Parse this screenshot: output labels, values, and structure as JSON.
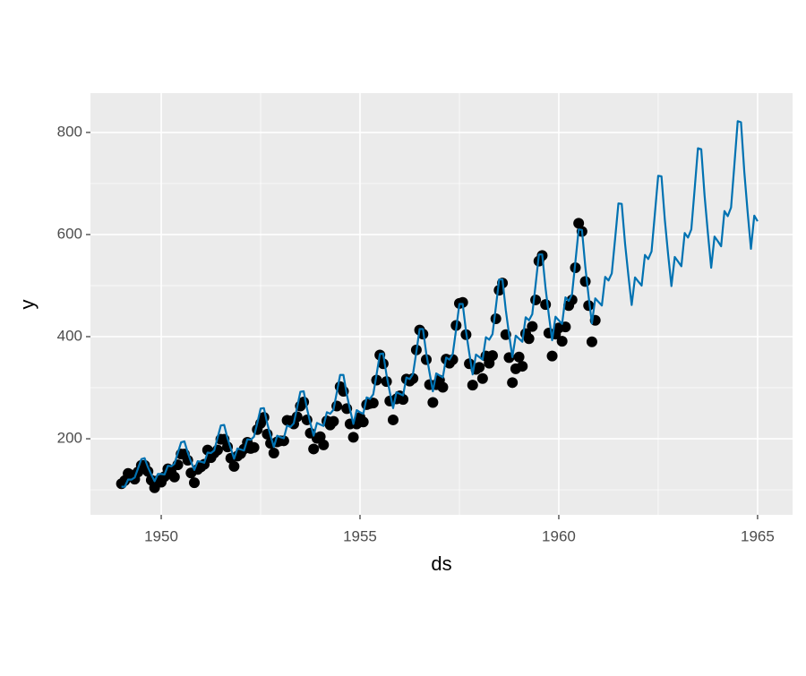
{
  "chart_data": {
    "type": "line",
    "xlabel": "ds",
    "ylabel": "y",
    "xlim": [
      1948.22,
      1965.88
    ],
    "ylim": [
      51,
      877
    ],
    "xticks": [
      1950,
      1955,
      1960,
      1965
    ],
    "yticks": [
      200,
      400,
      600,
      800
    ],
    "grid": true,
    "panel_color": "#ebebeb",
    "x": [
      1949,
      1949.083,
      1949.167,
      1949.25,
      1949.333,
      1949.417,
      1949.5,
      1949.583,
      1949.667,
      1949.75,
      1949.833,
      1949.917,
      1950,
      1950.083,
      1950.167,
      1950.25,
      1950.333,
      1950.417,
      1950.5,
      1950.583,
      1950.667,
      1950.75,
      1950.833,
      1950.917,
      1951,
      1951.083,
      1951.167,
      1951.25,
      1951.333,
      1951.417,
      1951.5,
      1951.583,
      1951.667,
      1951.75,
      1951.833,
      1951.917,
      1952,
      1952.083,
      1952.167,
      1952.25,
      1952.333,
      1952.417,
      1952.5,
      1952.583,
      1952.667,
      1952.75,
      1952.833,
      1952.917,
      1953,
      1953.083,
      1953.167,
      1953.25,
      1953.333,
      1953.417,
      1953.5,
      1953.583,
      1953.667,
      1953.75,
      1953.833,
      1953.917,
      1954,
      1954.083,
      1954.167,
      1954.25,
      1954.333,
      1954.417,
      1954.5,
      1954.583,
      1954.667,
      1954.75,
      1954.833,
      1954.917,
      1955,
      1955.083,
      1955.167,
      1955.25,
      1955.333,
      1955.417,
      1955.5,
      1955.583,
      1955.667,
      1955.75,
      1955.833,
      1955.917,
      1956,
      1956.083,
      1956.167,
      1956.25,
      1956.333,
      1956.417,
      1956.5,
      1956.583,
      1956.667,
      1956.75,
      1956.833,
      1956.917,
      1957,
      1957.083,
      1957.167,
      1957.25,
      1957.333,
      1957.417,
      1957.5,
      1957.583,
      1957.667,
      1957.75,
      1957.833,
      1957.917,
      1958,
      1958.083,
      1958.167,
      1958.25,
      1958.333,
      1958.417,
      1958.5,
      1958.583,
      1958.667,
      1958.75,
      1958.833,
      1958.917,
      1959,
      1959.083,
      1959.167,
      1959.25,
      1959.333,
      1959.417,
      1959.5,
      1959.583,
      1959.667,
      1959.75,
      1959.833,
      1959.917,
      1960,
      1960.083,
      1960.167,
      1960.25,
      1960.333,
      1960.417,
      1960.5,
      1960.583,
      1960.667,
      1960.75,
      1960.833,
      1960.917,
      1961,
      1961.083,
      1961.167,
      1961.25,
      1961.333,
      1961.417,
      1961.5,
      1961.583,
      1961.667,
      1961.75,
      1961.833,
      1961.917,
      1962,
      1962.083,
      1962.167,
      1962.25,
      1962.333,
      1962.417,
      1962.5,
      1962.583,
      1962.667,
      1962.75,
      1962.833,
      1962.917,
      1963,
      1963.083,
      1963.167,
      1963.25,
      1963.333,
      1963.417,
      1963.5,
      1963.583,
      1963.667,
      1963.75,
      1963.833,
      1963.917,
      1964,
      1964.083,
      1964.167,
      1964.25,
      1964.333,
      1964.417,
      1964.5,
      1964.583,
      1964.667,
      1964.75,
      1964.833,
      1964.917,
      1965
    ],
    "series": [
      {
        "kind": "points",
        "color": "#000000",
        "values": [
          112,
          118,
          132,
          129,
          121,
          135,
          148,
          148,
          136,
          119,
          104,
          118,
          115,
          126,
          141,
          135,
          125,
          149,
          170,
          170,
          158,
          133,
          114,
          140,
          145,
          150,
          178,
          163,
          172,
          178,
          199,
          199,
          184,
          162,
          146,
          166,
          171,
          180,
          193,
          181,
          183,
          218,
          230,
          242,
          209,
          191,
          172,
          194,
          196,
          196,
          236,
          235,
          229,
          243,
          264,
          272,
          237,
          211,
          180,
          201,
          204,
          188,
          235,
          227,
          234,
          264,
          302,
          293,
          259,
          229,
          203,
          229,
          242,
          233,
          267,
          269,
          270,
          315,
          364,
          347,
          312,
          274,
          237,
          278,
          284,
          277,
          317,
          313,
          318,
          374,
          413,
          405,
          355,
          306,
          271,
          306,
          315,
          301,
          356,
          348,
          355,
          422,
          465,
          467,
          404,
          347,
          305,
          336,
          340,
          318,
          362,
          348,
          363,
          435,
          491,
          505,
          404,
          359,
          310,
          337,
          360,
          342,
          406,
          396,
          420,
          472,
          548,
          559,
          463,
          407,
          362,
          405,
          417,
          391,
          419,
          461,
          472,
          535,
          622,
          606,
          508,
          461,
          390,
          432,
          null,
          null,
          null,
          null,
          null,
          null,
          null,
          null,
          null,
          null,
          null,
          null,
          null,
          null,
          null,
          null,
          null,
          null,
          null,
          null,
          null,
          null,
          null,
          null,
          null,
          null,
          null,
          null,
          null,
          null,
          null,
          null,
          null,
          null,
          null,
          null,
          null,
          null,
          null,
          null,
          null,
          null,
          null,
          null,
          null,
          null,
          null,
          null,
          null
        ]
      },
      {
        "kind": "line",
        "color": "#0072b2",
        "values": [
          106,
          106,
          120,
          120,
          124,
          142,
          160,
          162,
          144,
          130,
          117,
          131,
          131,
          130,
          147,
          146,
          151,
          172,
          193,
          195,
          173,
          155,
          139,
          156,
          155,
          153,
          173,
          172,
          177,
          202,
          226,
          227,
          201,
          181,
          161,
          181,
          179,
          177,
          199,
          198,
          204,
          231,
          259,
          260,
          230,
          206,
          184,
          206,
          203,
          201,
          226,
          223,
          230,
          261,
          292,
          293,
          259,
          231,
          206,
          231,
          228,
          225,
          252,
          249,
          257,
          291,
          325,
          325,
          287,
          257,
          229,
          256,
          252,
          249,
          281,
          278,
          287,
          326,
          366,
          367,
          325,
          291,
          260,
          291,
          288,
          285,
          320,
          317,
          327,
          370,
          415,
          415,
          367,
          329,
          293,
          328,
          324,
          320,
          359,
          355,
          366,
          414,
          464,
          464,
          410,
          367,
          326,
          365,
          360,
          355,
          399,
          394,
          405,
          458,
          512,
          512,
          452,
          404,
          360,
          402,
          396,
          390,
          438,
          432,
          444,
          502,
          561,
          561,
          495,
          442,
          393,
          439,
          432,
          425,
          477,
          470,
          483,
          546,
          610,
          609,
          537,
          479,
          426,
          475,
          468,
          461,
          517,
          510,
          524,
          592,
          661,
          660,
          582,
          520,
          462,
          516,
          508,
          500,
          560,
          552,
          567,
          641,
          715,
          714,
          629,
          561,
          499,
          556,
          547,
          538,
          603,
          594,
          610,
          689,
          769,
          767,
          676,
          603,
          535,
          596,
          587,
          577,
          646,
          636,
          653,
          737,
          822,
          820,
          722,
          644,
          572,
          637,
          626
        ]
      }
    ]
  }
}
